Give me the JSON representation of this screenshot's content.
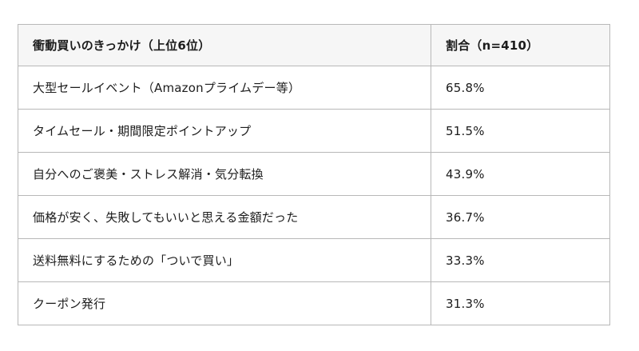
{
  "table": {
    "title_column_header": "衝動買いのきっかけ（上位6位）",
    "value_column_header": "割合（n=410）",
    "rows": [
      {
        "trigger": "大型セールイベント（Amazonプライムデー等）",
        "percent": "65.8%"
      },
      {
        "trigger": "タイムセール・期間限定ポイントアップ",
        "percent": "51.5%"
      },
      {
        "trigger": "自分へのご褒美・ストレス解消・気分転換",
        "percent": "43.9%"
      },
      {
        "trigger": "価格が安く、失敗してもいいと思える金額だった",
        "percent": "36.7%"
      },
      {
        "trigger": "送料無料にするための「ついで買い」",
        "percent": "33.3%"
      },
      {
        "trigger": "クーポン発行",
        "percent": "31.3%"
      }
    ],
    "colors": {
      "header_bg": "#f6f6f6",
      "border": "#b8b8b8",
      "text": "#1c1c1c",
      "page_bg": "#ffffff"
    }
  },
  "chart_data": {
    "type": "table",
    "title": "衝動買いのきっかけ（上位6位）",
    "columns": [
      "衝動買いのきっかけ（上位6位）",
      "割合（n=410）"
    ],
    "categories": [
      "大型セールイベント（Amazonプライムデー等）",
      "タイムセール・期間限定ポイントアップ",
      "自分へのご褒美・ストレス解消・気分転換",
      "価格が安く、失敗してもいいと思える金額だった",
      "送料無料にするための「ついで買い」",
      "クーポン発行"
    ],
    "values": [
      65.8,
      51.5,
      43.9,
      36.7,
      33.3,
      31.3
    ],
    "value_unit": "%",
    "sample_size": 410
  }
}
